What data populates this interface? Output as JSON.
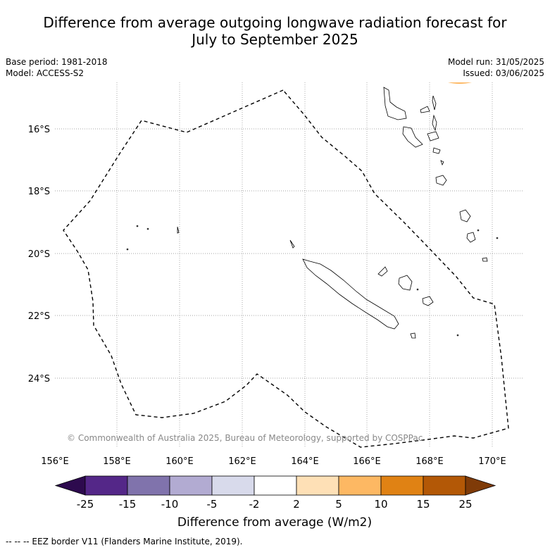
{
  "title_line1": "Difference from average outgoing longwave radiation forecast for",
  "title_line2": "July to September 2025",
  "meta": {
    "base_period": "Base period: 1981-2018",
    "model": "Model: ACCESS-S2",
    "model_run": "Model run: 31/05/2025",
    "issued": "Issued: 03/06/2025"
  },
  "axes": {
    "lat_labels": [
      "16°S",
      "18°S",
      "20°S",
      "22°S",
      "24°S"
    ],
    "lon_labels": [
      "156°E",
      "158°E",
      "160°E",
      "162°E",
      "164°E",
      "166°E",
      "168°E",
      "170°E"
    ]
  },
  "copyright": "© Commonwealth of Australia 2025, Bureau of Meteorology, supported by COSPPac",
  "colorbar": {
    "label": "Difference from average (W/m2)",
    "ticks": [
      "-25",
      "-15",
      "-10",
      "-5",
      "-2",
      "2",
      "5",
      "10",
      "15",
      "25"
    ],
    "colors": [
      "#2d0a4e",
      "#542788",
      "#8073ac",
      "#b2abd2",
      "#d8daeb",
      "#ffffff",
      "#fee0b6",
      "#fdb863",
      "#e08214",
      "#b35806",
      "#7f3b08"
    ]
  },
  "footer": "--  --  -- EEZ border V11 (Flanders Marine Institute, 2019)."
}
